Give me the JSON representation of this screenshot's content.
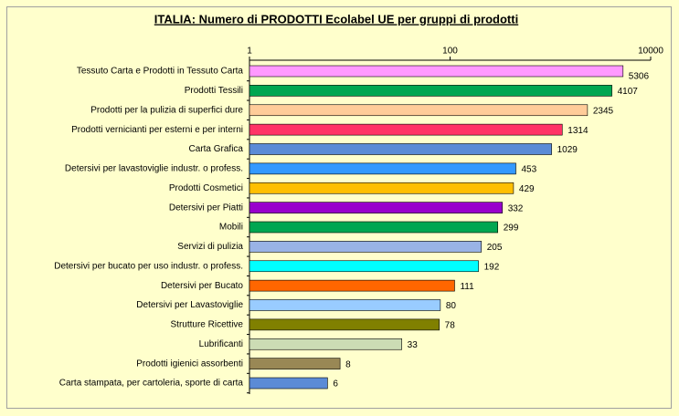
{
  "chart_data": {
    "type": "bar",
    "orientation": "horizontal",
    "title": "ITALIA: Numero di PRODOTTI  Ecolabel UE per gruppi di prodotti",
    "categories": [
      "Tessuto Carta e Prodotti in Tessuto Carta",
      "Prodotti Tessili",
      "Prodotti per la pulizia di superfici dure",
      "Prodotti vernicianti per esterni e per interni",
      "Carta Grafica",
      "Detersivi per lavastoviglie industr. o profess.",
      "Prodotti Cosmetici",
      "Detersivi per Piatti",
      "Mobili",
      "Servizi di pulizia",
      "Detersivi per bucato per uso industr. o profess.",
      "Detersivi per Bucato",
      "Detersivi per Lavastoviglie",
      "Strutture Ricettive",
      "Lubrificanti",
      "Prodotti igienici assorbenti",
      "Carta stampata, per cartoleria, sporte di carta"
    ],
    "values": [
      5306,
      4107,
      2345,
      1314,
      1029,
      453,
      429,
      332,
      299,
      205,
      192,
      111,
      80,
      78,
      33,
      8,
      6
    ],
    "colors": [
      "#ff99ff",
      "#00a651",
      "#ffcc99",
      "#ff3366",
      "#5b8bd6",
      "#3399ff",
      "#ffbf00",
      "#9900cc",
      "#00a651",
      "#99b3e6",
      "#00ffff",
      "#ff6600",
      "#99ccff",
      "#808000",
      "#ccdcb4",
      "#998855",
      "#5b8bd6"
    ],
    "xlim": [
      1,
      10000
    ],
    "xticks": [
      1,
      100,
      10000
    ],
    "log_scale": true,
    "grid": false
  }
}
